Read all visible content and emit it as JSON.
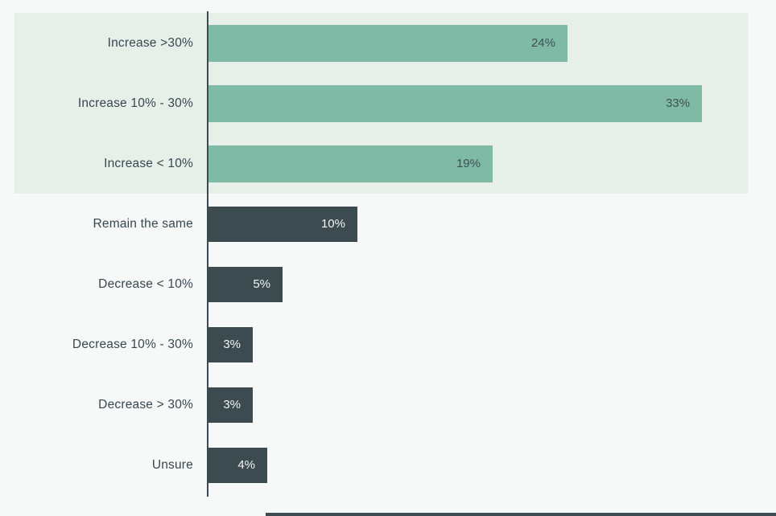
{
  "chart_data": {
    "type": "bar",
    "orientation": "horizontal",
    "title": "",
    "xlabel": "",
    "ylabel": "",
    "xlim": [
      0,
      33
    ],
    "grid": false,
    "legend": "none",
    "categories": [
      "Increase >30%",
      "Increase 10% - 30%",
      "Increase < 10%",
      "Remain the same",
      "Decrease < 10%",
      "Decrease 10% - 30%",
      "Decrease > 30%",
      "Unsure"
    ],
    "values": [
      24,
      33,
      19,
      10,
      5,
      3,
      3,
      4
    ],
    "value_labels": [
      "24%",
      "33%",
      "19%",
      "10%",
      "5%",
      "3%",
      "3%",
      "4%"
    ],
    "bar_groups": [
      "increase",
      "increase",
      "increase",
      "other",
      "other",
      "other",
      "other",
      "other"
    ],
    "highlight_group": {
      "rows": [
        0,
        1,
        2
      ],
      "background": "#e7efe9"
    },
    "colors": {
      "page_background": "#f7f8f8",
      "increase_bar": "#7fbaa6",
      "other_bar": "#3c4b4f",
      "label_text": "#37474f",
      "value_text_on_green": "#3f5052",
      "value_text_on_dark": "#f2f5f5",
      "axis_line": "#3c4b4f"
    }
  }
}
